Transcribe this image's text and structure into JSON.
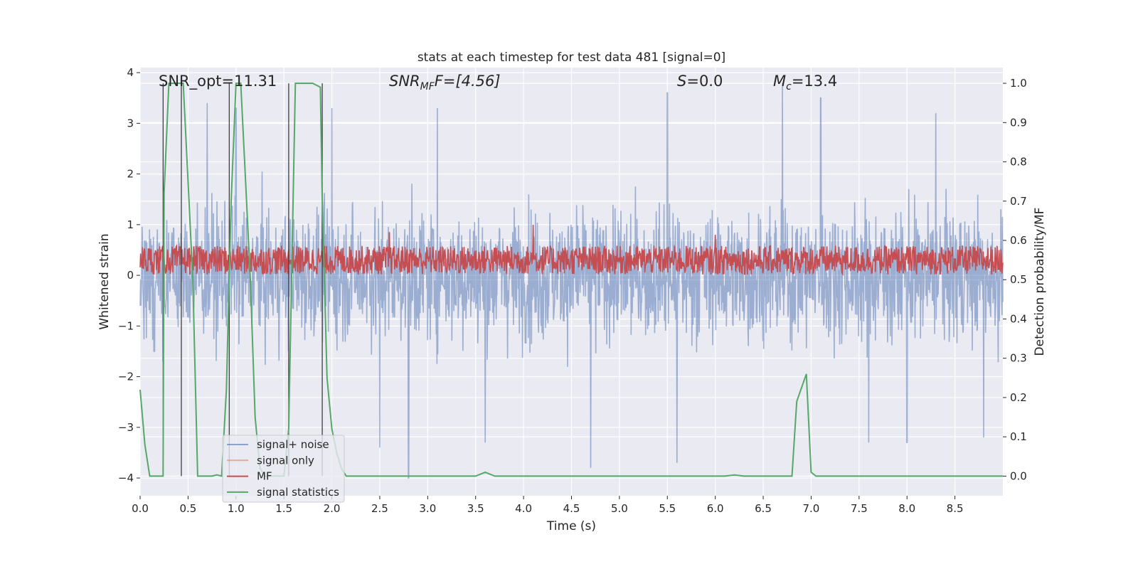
{
  "chart_data": {
    "type": "line",
    "title": "stats at each timestep for test data 481 [signal=0]",
    "xlabel": "Time (s)",
    "ylabel": "Whitened strain",
    "ylabel_right": "Detection probability/MF",
    "xlim": [
      0.0,
      9.0
    ],
    "ylim": [
      -4.35,
      4.1
    ],
    "ylim_right": [
      -0.05,
      1.04
    ],
    "xticks": [
      "0.0",
      "0.5",
      "1.0",
      "1.5",
      "2.0",
      "2.5",
      "3.0",
      "3.5",
      "4.0",
      "4.5",
      "5.0",
      "5.5",
      "6.0",
      "6.5",
      "7.0",
      "7.5",
      "8.0",
      "8.5"
    ],
    "yticks": [
      "4",
      "3",
      "2",
      "1",
      "0",
      "−1",
      "−2",
      "−3",
      "−4"
    ],
    "yticks_right": [
      "1.0",
      "0.9",
      "0.8",
      "0.7",
      "0.6",
      "0.5",
      "0.4",
      "0.3",
      "0.2",
      "0.1",
      "0.0"
    ],
    "grid": true,
    "legend_position": "lower-left",
    "annotations": {
      "snr_opt": "SNR_opt=11.31",
      "snr_mf_main": "SNR",
      "snr_mf_sub": "MF",
      "snr_mf_rest": "F=[4.56]",
      "s_main": "S",
      "s_rest": "=0.0",
      "mc_main": "M",
      "mc_sub": "c",
      "mc_rest": "=13.4"
    },
    "series": [
      {
        "name": "signal+ noise",
        "color": "#4c72b0",
        "axis": "left",
        "note": "noisy whitened strain, envelope approx between -2.6 and 2.6 with spikes to about 3.6 / -4.0",
        "peaks_x": [
          0.7,
          1.0,
          2.0,
          3.1,
          3.6,
          5.5,
          6.7,
          7.1,
          8.3
        ],
        "peaks_y": [
          3.4,
          3.3,
          3.3,
          3.3,
          3.2,
          3.6,
          3.8,
          3.5,
          3.2
        ],
        "troughs_x": [
          2.5,
          2.8,
          3.6,
          4.7,
          5.6,
          7.6,
          8.0,
          8.8
        ],
        "troughs_y": [
          -3.4,
          -4.0,
          -3.3,
          -3.8,
          -3.7,
          -3.3,
          -3.3,
          -3.2
        ]
      },
      {
        "name": "signal only",
        "color": "#dd8452",
        "axis": "left",
        "values": []
      },
      {
        "name": "MF",
        "color": "#c44e52",
        "axis": "left",
        "note": "matched-filter output band approx 0.0 to 0.6",
        "band": [
          0.0,
          0.6
        ],
        "peaks_x": [
          2.6,
          4.1,
          6.0
        ],
        "peaks_y": [
          0.85,
          1.0,
          0.8
        ]
      },
      {
        "name": "signal statistics",
        "color": "#55a868",
        "axis": "right",
        "x": [
          0.0,
          0.05,
          0.1,
          0.24,
          0.25,
          0.3,
          0.45,
          0.5,
          0.55,
          0.6,
          0.7,
          0.75,
          0.8,
          0.85,
          0.9,
          0.95,
          1.0,
          1.05,
          1.1,
          1.15,
          1.2,
          1.25,
          1.3,
          1.35,
          1.4,
          1.45,
          1.5,
          1.55,
          1.6,
          1.62,
          1.8,
          1.88,
          1.9,
          1.95,
          2.0,
          2.05,
          2.1,
          2.15,
          3.5,
          3.6,
          3.7,
          6.1,
          6.2,
          6.3,
          6.8,
          6.85,
          6.95,
          7.0,
          7.05,
          7.1,
          9.0
        ],
        "y": [
          0.22,
          0.08,
          0.0,
          0.0,
          0.72,
          1.0,
          1.0,
          0.75,
          0.5,
          0.0,
          0.0,
          0.0,
          0.003,
          0.0,
          0.22,
          0.7,
          1.0,
          1.0,
          0.75,
          0.5,
          0.15,
          0.02,
          0.0,
          0.0,
          0.0,
          0.0,
          0.0,
          0.12,
          0.75,
          1.0,
          1.0,
          0.99,
          0.7,
          0.25,
          0.12,
          0.06,
          0.02,
          0.0,
          0.0,
          0.01,
          0.0,
          0.0,
          0.003,
          0.0,
          0.0,
          0.19,
          0.26,
          0.01,
          0.0,
          0.0,
          0.0
        ]
      }
    ],
    "vlines_x": [
      0.24,
      0.43,
      0.93,
      1.55,
      1.9
    ],
    "colors": {
      "background": "#eaeaf2",
      "grid": "#ffffff",
      "vline": "#404040"
    }
  }
}
